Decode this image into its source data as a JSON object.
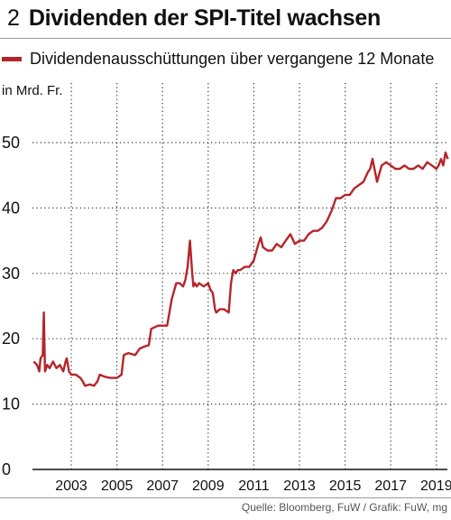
{
  "header": {
    "number": "2",
    "title": "Dividenden der SPI-Titel wachsen"
  },
  "chart_data": {
    "type": "line",
    "title": "Dividenden der SPI-Titel wachsen",
    "ylabel": "in Mrd. Fr.",
    "xlabel": "",
    "ylim": [
      0,
      50
    ],
    "xlim": [
      2001.3,
      2019.6
    ],
    "y_ticks": [
      "0",
      "10",
      "20",
      "30",
      "40",
      "50"
    ],
    "x_ticks": [
      "2003",
      "2005",
      "2007",
      "2009",
      "2011",
      "2013",
      "2015",
      "2017",
      "2019"
    ],
    "grid": "dotted",
    "legend_position": "top-left",
    "color": "#b5252a",
    "series": [
      {
        "name": "Dividendenausschüttungen über vergangene 12 Monate",
        "x": [
          2001.35,
          2001.5,
          2001.6,
          2001.65,
          2001.75,
          2001.8,
          2001.85,
          2001.95,
          2002.05,
          2002.2,
          2002.35,
          2002.5,
          2002.65,
          2002.75,
          2002.8,
          2002.9,
          2003.0,
          2003.2,
          2003.4,
          2003.5,
          2003.6,
          2003.8,
          2004.0,
          2004.15,
          2004.25,
          2004.45,
          2004.7,
          2005.0,
          2005.2,
          2005.3,
          2005.5,
          2005.8,
          2006.0,
          2006.2,
          2006.4,
          2006.5,
          2006.8,
          2007.0,
          2007.2,
          2007.4,
          2007.6,
          2007.75,
          2007.9,
          2008.0,
          2008.1,
          2008.2,
          2008.3,
          2008.35,
          2008.42,
          2008.5,
          2008.6,
          2008.8,
          2009.0,
          2009.1,
          2009.2,
          2009.3,
          2009.35,
          2009.5,
          2009.7,
          2009.9,
          2010.0,
          2010.1,
          2010.2,
          2010.3,
          2010.4,
          2010.6,
          2010.8,
          2011.0,
          2011.2,
          2011.3,
          2011.4,
          2011.6,
          2011.8,
          2012.0,
          2012.2,
          2012.4,
          2012.6,
          2012.8,
          2013.0,
          2013.2,
          2013.4,
          2013.6,
          2013.8,
          2014.0,
          2014.2,
          2014.4,
          2014.6,
          2014.8,
          2015.0,
          2015.2,
          2015.4,
          2015.6,
          2015.8,
          2016.0,
          2016.1,
          2016.2,
          2016.4,
          2016.6,
          2016.8,
          2017.0,
          2017.2,
          2017.4,
          2017.6,
          2017.8,
          2018.0,
          2018.2,
          2018.4,
          2018.6,
          2018.8,
          2019.0,
          2019.1,
          2019.2,
          2019.3,
          2019.4,
          2019.5
        ],
        "values": [
          16.5,
          16.0,
          15.0,
          17.0,
          17.5,
          24.0,
          15.0,
          16.0,
          15.5,
          16.5,
          15.5,
          16.0,
          15.0,
          16.5,
          17.0,
          15.0,
          14.5,
          14.5,
          14.0,
          13.5,
          12.8,
          13.0,
          12.8,
          13.5,
          14.5,
          14.2,
          14.0,
          14.0,
          14.5,
          17.5,
          17.8,
          17.5,
          18.5,
          18.8,
          19.0,
          21.5,
          22.0,
          22.0,
          22.0,
          26.0,
          28.5,
          28.5,
          28.0,
          29.0,
          31.0,
          35.0,
          30.0,
          28.0,
          28.5,
          28.0,
          28.5,
          28.0,
          28.5,
          27.5,
          27.0,
          24.5,
          24.0,
          24.5,
          24.5,
          24.0,
          28.5,
          30.5,
          30.0,
          30.5,
          30.5,
          31.0,
          31.0,
          32.0,
          34.5,
          35.5,
          34.0,
          33.5,
          33.5,
          34.5,
          34.0,
          35.0,
          36.0,
          34.5,
          35.0,
          35.0,
          36.0,
          36.5,
          36.5,
          37.0,
          38.0,
          39.5,
          41.5,
          41.5,
          42.0,
          42.0,
          43.0,
          43.5,
          44.0,
          45.5,
          46.0,
          47.5,
          44.0,
          46.5,
          47.0,
          46.5,
          46.0,
          46.0,
          46.5,
          46.0,
          46.0,
          46.5,
          46.0,
          47.0,
          46.5,
          46.0,
          46.5,
          47.5,
          46.5,
          48.5,
          47.5
        ]
      }
    ],
    "source": "Quelle: Bloomberg, FuW / Grafik: FuW, mg"
  }
}
